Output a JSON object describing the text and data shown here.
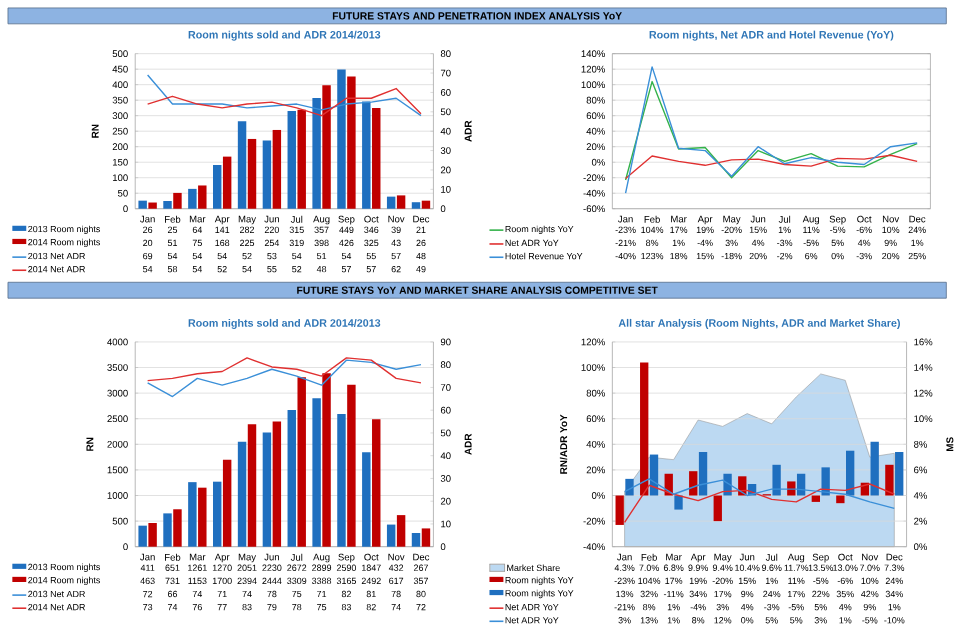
{
  "chart_data": [
    {
      "type": "bar",
      "title": "Room nights sold and ADR 2014/2013",
      "ylabel": "RN",
      "y2label": "ADR",
      "annotations": [
        "FUTURE STAYS AND PENETRATION INDEX ANALYSIS YoY"
      ],
      "categories": [
        "Jan",
        "Feb",
        "Mar",
        "Apr",
        "May",
        "Jun",
        "Jul",
        "Aug",
        "Sep",
        "Oct",
        "Nov",
        "Dec"
      ],
      "series": [
        {
          "name": "2013 Room nights",
          "color": "#1f6fbf",
          "values": [
            26,
            25,
            64,
            141,
            282,
            220,
            315,
            357,
            449,
            346,
            39,
            21
          ],
          "value_labels": [
            "26",
            "25",
            "64",
            "141",
            "282",
            "220",
            "315",
            "357",
            "449",
            "346",
            "39",
            "21"
          ]
        },
        {
          "name": "2014 Room nights",
          "color": "#c00000",
          "values": [
            20,
            51,
            75,
            168,
            225,
            254,
            319,
            398,
            426,
            325,
            43,
            26
          ],
          "value_labels": [
            "20",
            "51",
            "75",
            "168",
            "225",
            "254",
            "319",
            "398",
            "426",
            "325",
            "43",
            "26"
          ]
        },
        {
          "name": "2013 Net ADR",
          "type": "line",
          "axis": "y2",
          "color": "#3a8fd8",
          "values": [
            69,
            54,
            54,
            54,
            52,
            53,
            54,
            51,
            54,
            55,
            57,
            48
          ],
          "value_labels": [
            "69",
            "54",
            "54",
            "54",
            "52",
            "53",
            "54",
            "51",
            "54",
            "55",
            "57",
            "48"
          ]
        },
        {
          "name": "2014 Net ADR",
          "type": "line",
          "axis": "y2",
          "color": "#e03030",
          "values": [
            54,
            58,
            54,
            52,
            54,
            55,
            52,
            48,
            57,
            57,
            62,
            49
          ],
          "value_labels": [
            "54",
            "58",
            "54",
            "52",
            "54",
            "55",
            "52",
            "48",
            "57",
            "57",
            "62",
            "49"
          ]
        }
      ],
      "ylim": [
        0,
        500
      ],
      "yticks": [
        0,
        50,
        100,
        150,
        200,
        250,
        300,
        350,
        400,
        450,
        500
      ],
      "y2lim": [
        0,
        80
      ],
      "y2ticks": [
        0,
        10,
        20,
        30,
        40,
        50,
        60,
        70,
        80
      ],
      "grid": "y",
      "legend": "bottom"
    },
    {
      "type": "line",
      "title": "Room nights, Net ADR and Hotel Revenue (YoY)",
      "categories": [
        "Jan",
        "Feb",
        "Mar",
        "Apr",
        "May",
        "Jun",
        "Jul",
        "Aug",
        "Sep",
        "Oct",
        "Nov",
        "Dec"
      ],
      "series": [
        {
          "name": "Room nights YoY",
          "color": "#33b24a",
          "values": [
            -23,
            104,
            17,
            19,
            -20,
            15,
            1,
            11,
            -5,
            -6,
            10,
            24
          ],
          "value_labels": [
            "-23%",
            "104%",
            "17%",
            "19%",
            "-20%",
            "15%",
            "1%",
            "11%",
            "-5%",
            "-6%",
            "10%",
            "24%"
          ]
        },
        {
          "name": "Net ADR YoY",
          "color": "#e03030",
          "values": [
            -21,
            8,
            1,
            -4,
            3,
            4,
            -3,
            -5,
            5,
            4,
            9,
            1
          ],
          "value_labels": [
            "-21%",
            "8%",
            "1%",
            "-4%",
            "3%",
            "4%",
            "-3%",
            "-5%",
            "5%",
            "4%",
            "9%",
            "1%"
          ]
        },
        {
          "name": "Hotel Revenue YoY",
          "color": "#3a8fd8",
          "values": [
            -40,
            123,
            18,
            15,
            -18,
            20,
            -2,
            6,
            0,
            -3,
            20,
            25
          ],
          "value_labels": [
            "-40%",
            "123%",
            "18%",
            "15%",
            "-18%",
            "20%",
            "-2%",
            "6%",
            "0%",
            "-3%",
            "20%",
            "25%"
          ]
        }
      ],
      "ylim": [
        -60,
        140
      ],
      "yticks": [
        {
          "value": -60,
          "label": "-60%"
        },
        {
          "value": -40,
          "label": "-40%"
        },
        {
          "value": -20,
          "label": "-20%"
        },
        {
          "value": 0,
          "label": "0%"
        },
        {
          "value": 20,
          "label": "20%"
        },
        {
          "value": 40,
          "label": "40%"
        },
        {
          "value": 60,
          "label": "60%"
        },
        {
          "value": 80,
          "label": "80%"
        },
        {
          "value": 100,
          "label": "100%"
        },
        {
          "value": 120,
          "label": "120%"
        },
        {
          "value": 140,
          "label": "140%"
        }
      ],
      "grid": "y",
      "legend": "bottom"
    },
    {
      "type": "bar",
      "title": "Room nights sold and ADR 2014/2013",
      "ylabel": "RN",
      "y2label": "ADR",
      "annotations": [
        "FUTURE STAYS YoY AND MARKET SHARE ANALYSIS COMPETITIVE SET"
      ],
      "categories": [
        "Jan",
        "Feb",
        "Mar",
        "Apr",
        "May",
        "Jun",
        "Jul",
        "Aug",
        "Sep",
        "Oct",
        "Nov",
        "Dec"
      ],
      "series": [
        {
          "name": "2013 Room nights",
          "color": "#1f6fbf",
          "values": [
            411,
            651,
            1261,
            1270,
            2051,
            2230,
            2672,
            2899,
            2590,
            1847,
            432,
            267
          ],
          "value_labels": [
            "411",
            "651",
            "1261",
            "1270",
            "2051",
            "2230",
            "2672",
            "2899",
            "2590",
            "1847",
            "432",
            "267"
          ]
        },
        {
          "name": "2014 Room nights",
          "color": "#c00000",
          "values": [
            463,
            731,
            1153,
            1700,
            2394,
            2444,
            3309,
            3388,
            3165,
            2492,
            617,
            357
          ],
          "value_labels": [
            "463",
            "731",
            "1153",
            "1700",
            "2394",
            "2444",
            "3309",
            "3388",
            "3165",
            "2492",
            "617",
            "357"
          ]
        },
        {
          "name": "2013 Net ADR",
          "type": "line",
          "axis": "y2",
          "color": "#3a8fd8",
          "values": [
            72,
            66,
            74,
            71,
            74,
            78,
            75,
            71,
            82,
            81,
            78,
            80
          ],
          "value_labels": [
            "72",
            "66",
            "74",
            "71",
            "74",
            "78",
            "75",
            "71",
            "82",
            "81",
            "78",
            "80"
          ]
        },
        {
          "name": "2014 Net ADR",
          "type": "line",
          "axis": "y2",
          "color": "#e03030",
          "values": [
            73,
            74,
            76,
            77,
            83,
            79,
            78,
            75,
            83,
            82,
            74,
            72
          ],
          "value_labels": [
            "73",
            "74",
            "76",
            "77",
            "83",
            "79",
            "78",
            "75",
            "83",
            "82",
            "74",
            "72"
          ]
        }
      ],
      "ylim": [
        0,
        4000
      ],
      "yticks": [
        0,
        500,
        1000,
        1500,
        2000,
        2500,
        3000,
        3500,
        4000
      ],
      "y2lim": [
        0,
        90
      ],
      "y2ticks": [
        0,
        10,
        20,
        30,
        40,
        50,
        60,
        70,
        80,
        90
      ],
      "grid": "y",
      "legend": "bottom"
    },
    {
      "type": "bar",
      "title": "All star Analysis (Room Nights, ADR and Market Share)",
      "ylabel": "RN/ADR YoY",
      "y2label": "MS",
      "categories": [
        "Jan",
        "Feb",
        "Mar",
        "Apr",
        "May",
        "Jun",
        "Jul",
        "Aug",
        "Sep",
        "Oct",
        "Nov",
        "Dec"
      ],
      "series": [
        {
          "name": "Market Share",
          "type": "area",
          "axis": "y2",
          "color": "#bcd9f2",
          "values": [
            4.3,
            7.0,
            6.8,
            9.9,
            9.4,
            10.4,
            9.6,
            11.7,
            13.5,
            13.0,
            7.0,
            7.3
          ],
          "value_labels": [
            "4.3%",
            "7.0%",
            "6.8%",
            "9.9%",
            "9.4%",
            "10.4%",
            "9.6%",
            "11.7%",
            "13.5%",
            "13.0%",
            "7.0%",
            "7.3%"
          ]
        },
        {
          "name": "Room nights YoY",
          "color": "#c00000",
          "values": [
            -23,
            104,
            17,
            19,
            -20,
            15,
            1,
            11,
            -5,
            -6,
            10,
            24
          ],
          "value_labels": [
            "-23%",
            "104%",
            "17%",
            "19%",
            "-20%",
            "15%",
            "1%",
            "11%",
            "-5%",
            "-6%",
            "10%",
            "24%"
          ]
        },
        {
          "name": "Room nights YoY",
          "color": "#1f6fbf",
          "values": [
            13,
            32,
            -11,
            34,
            17,
            9,
            24,
            17,
            22,
            35,
            42,
            34
          ],
          "value_labels": [
            "13%",
            "32%",
            "-11%",
            "34%",
            "17%",
            "9%",
            "24%",
            "17%",
            "22%",
            "35%",
            "42%",
            "34%"
          ]
        },
        {
          "name": "Net ADR YoY",
          "type": "line",
          "color": "#e03030",
          "values": [
            -21,
            8,
            1,
            -4,
            3,
            4,
            -3,
            -5,
            5,
            4,
            9,
            1
          ],
          "value_labels": [
            "-21%",
            "8%",
            "1%",
            "-4%",
            "3%",
            "4%",
            "-3%",
            "-5%",
            "5%",
            "4%",
            "9%",
            "1%"
          ]
        },
        {
          "name": "Net ADR YoY",
          "type": "line",
          "color": "#3a8fd8",
          "values": [
            3,
            13,
            1,
            8,
            12,
            0,
            5,
            5,
            3,
            1,
            -5,
            -10
          ],
          "value_labels": [
            "3%",
            "13%",
            "1%",
            "8%",
            "12%",
            "0%",
            "5%",
            "5%",
            "3%",
            "1%",
            "-5%",
            "-10%"
          ]
        }
      ],
      "ylim": [
        -40,
        120
      ],
      "yticks": [
        {
          "value": -40,
          "label": "-40%"
        },
        {
          "value": -20,
          "label": "-20%"
        },
        {
          "value": 0,
          "label": "0%"
        },
        {
          "value": 20,
          "label": "20%"
        },
        {
          "value": 40,
          "label": "40%"
        },
        {
          "value": 60,
          "label": "60%"
        },
        {
          "value": 80,
          "label": "80%"
        },
        {
          "value": 100,
          "label": "100%"
        },
        {
          "value": 120,
          "label": "120%"
        }
      ],
      "y2lim": [
        0,
        16
      ],
      "y2ticks": [
        {
          "value": 0,
          "label": "0%"
        },
        {
          "value": 2,
          "label": "2%"
        },
        {
          "value": 4,
          "label": "4%"
        },
        {
          "value": 6,
          "label": "6%"
        },
        {
          "value": 8,
          "label": "8%"
        },
        {
          "value": 10,
          "label": "10%"
        },
        {
          "value": 12,
          "label": "12%"
        },
        {
          "value": 14,
          "label": "14%"
        },
        {
          "value": 16,
          "label": "16%"
        }
      ],
      "grid": "y",
      "legend": "bottom"
    }
  ]
}
